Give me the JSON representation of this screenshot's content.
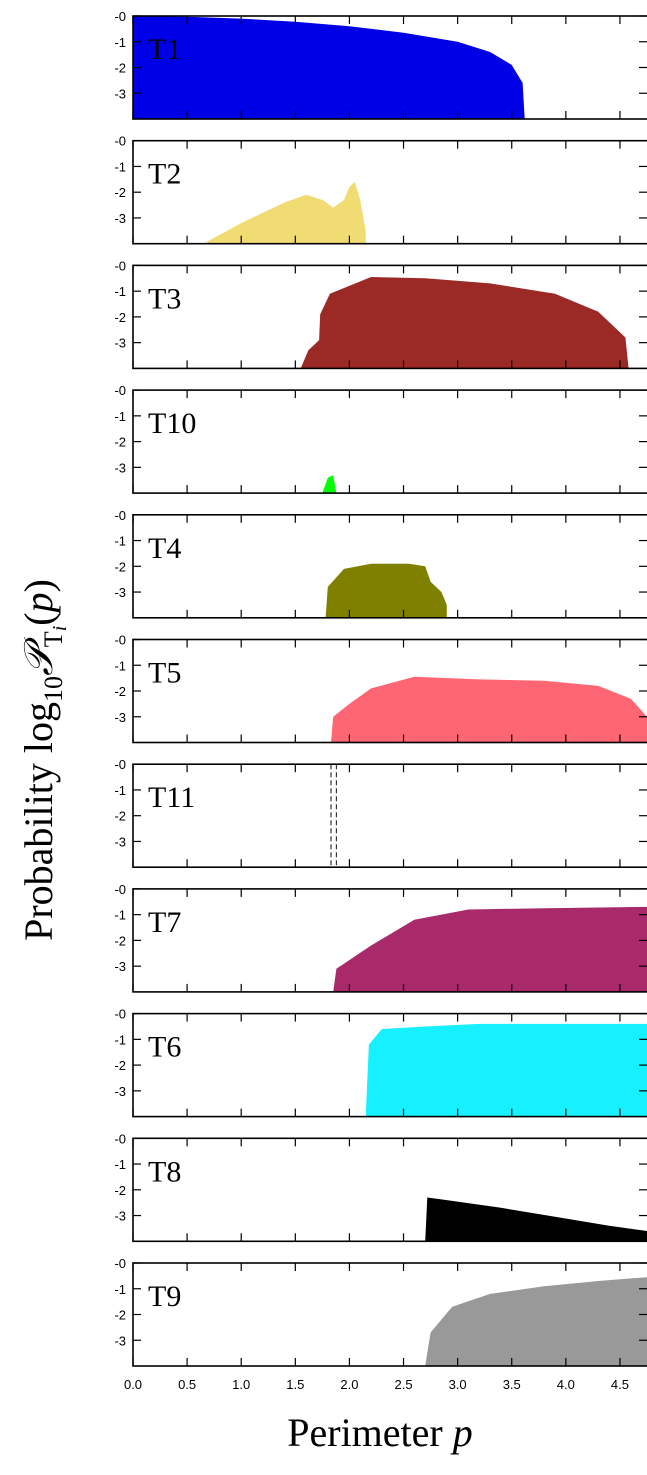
{
  "chart_data": {
    "type": "area",
    "title": "",
    "xlabel": "Perimeter p",
    "xlabel_main": "Perimeter ",
    "xlabel_var": "p",
    "ylabel": "Probability log10 P_Ti(p)",
    "xlim": [
      0.0,
      4.75
    ],
    "ylim": [
      -4.0,
      0.0
    ],
    "xticks": [
      "0.0",
      "0.5",
      "1.0",
      "1.5",
      "2.0",
      "2.5",
      "3.0",
      "3.5",
      "4.0",
      "4.5"
    ],
    "yticks": [
      "-0",
      "-1",
      "-2",
      "-3"
    ],
    "grid": false,
    "panels": [
      {
        "label": "T1",
        "color": "#0000e6",
        "shape": "area",
        "points": [
          [
            0.0,
            0.0
          ],
          [
            0.5,
            -0.03
          ],
          [
            1.0,
            -0.1
          ],
          [
            1.5,
            -0.22
          ],
          [
            2.0,
            -0.4
          ],
          [
            2.5,
            -0.65
          ],
          [
            3.0,
            -1.0
          ],
          [
            3.3,
            -1.4
          ],
          [
            3.5,
            -1.9
          ],
          [
            3.6,
            -2.6
          ],
          [
            3.62,
            -4.0
          ]
        ]
      },
      {
        "label": "T2",
        "color": "#f0dc73",
        "shape": "area",
        "points": [
          [
            0.65,
            -4.0
          ],
          [
            1.0,
            -3.2
          ],
          [
            1.4,
            -2.4
          ],
          [
            1.6,
            -2.1
          ],
          [
            1.75,
            -2.3
          ],
          [
            1.85,
            -2.6
          ],
          [
            1.95,
            -2.3
          ],
          [
            2.0,
            -1.8
          ],
          [
            2.05,
            -1.6
          ],
          [
            2.1,
            -2.3
          ],
          [
            2.15,
            -3.5
          ],
          [
            2.15,
            -4.0
          ]
        ]
      },
      {
        "label": "T3",
        "color": "#9b2a26",
        "shape": "area",
        "points": [
          [
            1.55,
            -4.0
          ],
          [
            1.62,
            -3.3
          ],
          [
            1.72,
            -2.9
          ],
          [
            1.73,
            -1.9
          ],
          [
            1.82,
            -1.1
          ],
          [
            2.2,
            -0.45
          ],
          [
            2.7,
            -0.5
          ],
          [
            3.3,
            -0.7
          ],
          [
            3.9,
            -1.1
          ],
          [
            4.3,
            -1.8
          ],
          [
            4.55,
            -2.8
          ],
          [
            4.58,
            -4.0
          ]
        ]
      },
      {
        "label": "T10",
        "color": "#00ff00",
        "shape": "area",
        "points": [
          [
            1.75,
            -4.0
          ],
          [
            1.8,
            -3.4
          ],
          [
            1.85,
            -3.3
          ],
          [
            1.87,
            -3.8
          ],
          [
            1.88,
            -4.0
          ]
        ]
      },
      {
        "label": "T4",
        "color": "#808000",
        "shape": "area",
        "points": [
          [
            1.78,
            -4.0
          ],
          [
            1.8,
            -2.8
          ],
          [
            1.95,
            -2.1
          ],
          [
            2.2,
            -1.9
          ],
          [
            2.55,
            -1.9
          ],
          [
            2.7,
            -2.0
          ],
          [
            2.75,
            -2.6
          ],
          [
            2.85,
            -3.0
          ],
          [
            2.9,
            -3.5
          ],
          [
            2.9,
            -4.0
          ]
        ]
      },
      {
        "label": "T5",
        "color": "#ff6673",
        "shape": "area",
        "points": [
          [
            1.83,
            -4.0
          ],
          [
            1.85,
            -3.0
          ],
          [
            2.0,
            -2.5
          ],
          [
            2.2,
            -1.9
          ],
          [
            2.6,
            -1.45
          ],
          [
            3.2,
            -1.55
          ],
          [
            3.8,
            -1.6
          ],
          [
            4.3,
            -1.8
          ],
          [
            4.6,
            -2.3
          ],
          [
            4.75,
            -3.0
          ],
          [
            4.75,
            -4.0
          ]
        ]
      },
      {
        "label": "T11",
        "color": "#333333",
        "shape": "dashed-lines",
        "x": [
          1.83,
          1.88
        ]
      },
      {
        "label": "T7",
        "color": "#a82a6b",
        "shape": "area",
        "points": [
          [
            1.85,
            -4.0
          ],
          [
            1.88,
            -3.1
          ],
          [
            2.2,
            -2.2
          ],
          [
            2.6,
            -1.2
          ],
          [
            3.1,
            -0.8
          ],
          [
            3.8,
            -0.75
          ],
          [
            4.75,
            -0.7
          ],
          [
            4.75,
            -4.0
          ]
        ]
      },
      {
        "label": "T6",
        "color": "#16f0ff",
        "shape": "area",
        "points": [
          [
            2.15,
            -4.0
          ],
          [
            2.18,
            -1.2
          ],
          [
            2.3,
            -0.6
          ],
          [
            2.7,
            -0.5
          ],
          [
            3.2,
            -0.4
          ],
          [
            4.0,
            -0.4
          ],
          [
            4.75,
            -0.4
          ],
          [
            4.75,
            -4.0
          ]
        ]
      },
      {
        "label": "T8",
        "color": "#000000",
        "shape": "area",
        "points": [
          [
            2.7,
            -4.0
          ],
          [
            2.72,
            -2.3
          ],
          [
            2.9,
            -2.4
          ],
          [
            3.4,
            -2.7
          ],
          [
            3.9,
            -3.05
          ],
          [
            4.4,
            -3.4
          ],
          [
            4.75,
            -3.6
          ],
          [
            4.75,
            -4.0
          ]
        ]
      },
      {
        "label": "T9",
        "color": "#999999",
        "shape": "area",
        "points": [
          [
            2.7,
            -4.0
          ],
          [
            2.75,
            -2.7
          ],
          [
            2.95,
            -1.7
          ],
          [
            3.3,
            -1.2
          ],
          [
            3.8,
            -0.9
          ],
          [
            4.3,
            -0.7
          ],
          [
            4.75,
            -0.55
          ],
          [
            4.75,
            -4.0
          ]
        ]
      }
    ]
  }
}
